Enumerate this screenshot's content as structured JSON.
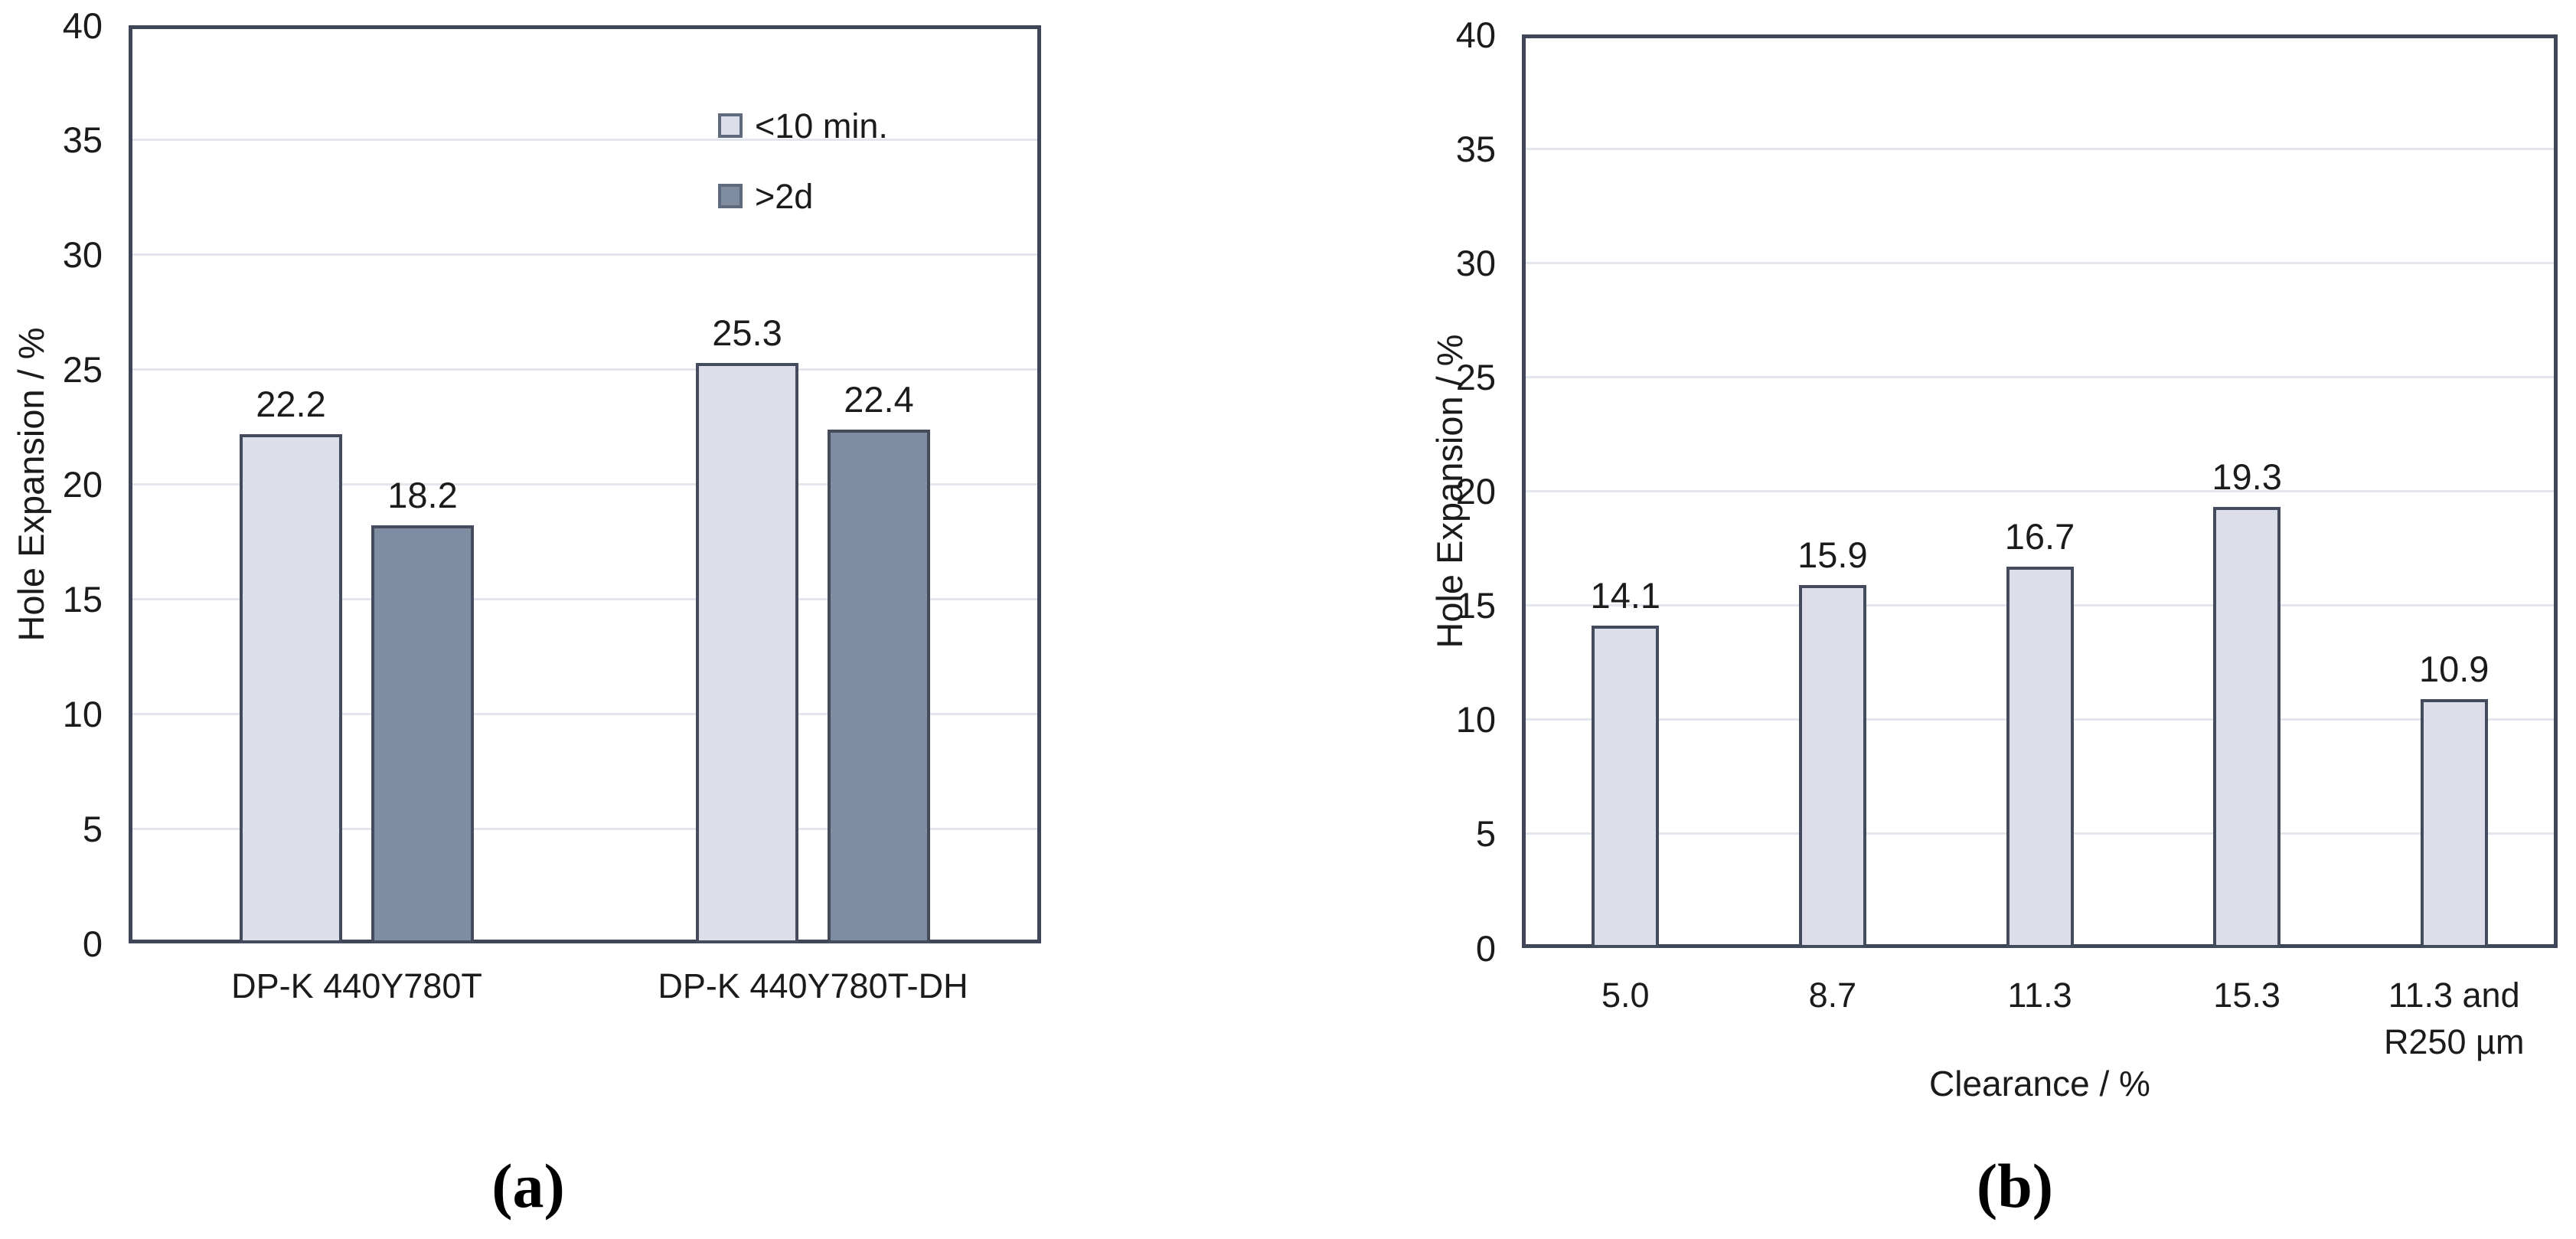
{
  "panels": {
    "a": {
      "label": "(a)"
    },
    "b": {
      "label": "(b)"
    }
  },
  "colors": {
    "bar_light": "#dcdfe9",
    "bar_dark": "#7e8da1",
    "frame": "#3e4657",
    "bar_border": "#434b5c",
    "legend_border": "#5f6b7d",
    "grid": "#e3e6ed",
    "text": "#1b1b1b"
  },
  "chart_data": [
    {
      "type": "bar",
      "panel": "a",
      "title": "",
      "categories": [
        "DP-K 440Y780T",
        "DP-K 440Y780T-DH"
      ],
      "series": [
        {
          "name": "<10 min.",
          "color_key": "bar_light",
          "values": [
            22.2,
            25.3
          ]
        },
        {
          "name": ">2d",
          "color_key": "bar_dark",
          "values": [
            18.2,
            22.4
          ]
        }
      ],
      "ylabel": "Hole Expansion / %",
      "xlabel": "",
      "ylim": [
        0,
        40
      ],
      "ytick_step": 5,
      "grid": true,
      "legend_position": "top-right",
      "data_labels": true
    },
    {
      "type": "bar",
      "panel": "b",
      "title": "",
      "categories": [
        "5.0",
        "8.7",
        "11.3",
        "15.3",
        "11.3 and\nR250 µm"
      ],
      "series": [
        {
          "name": "",
          "color_key": "bar_light",
          "values": [
            14.1,
            15.9,
            16.7,
            19.3,
            10.9
          ]
        }
      ],
      "ylabel": "Hole Expansion / %",
      "xlabel": "Clearance / %",
      "ylim": [
        0,
        40
      ],
      "ytick_step": 5,
      "grid": true,
      "legend_position": "none",
      "data_labels": true
    }
  ]
}
